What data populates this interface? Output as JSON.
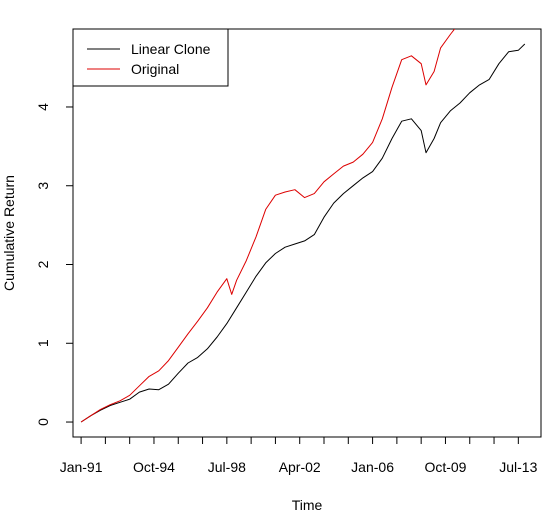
{
  "chart_data": {
    "type": "line",
    "title": "",
    "xlabel": "Time",
    "ylabel": "Cumulative Return",
    "x_tick_labels": [
      "Jan-91",
      "Oct-94",
      "Jul-98",
      "Apr-02",
      "Jan-06",
      "Oct-09",
      "Jul-13"
    ],
    "y_tick_labels": [
      "0",
      "1",
      "2",
      "3",
      "4"
    ],
    "y_ticks": [
      0,
      1,
      2,
      3,
      4
    ],
    "ylim": [
      -0.19,
      4.99
    ],
    "xlim": [
      "1990-08",
      "2014-09"
    ],
    "grid": false,
    "legend_position": "top-left",
    "series": [
      {
        "name": "Linear Clone",
        "color": "#000000",
        "points": [
          [
            "1991-01",
            0.0
          ],
          [
            "1991-07",
            0.08
          ],
          [
            "1992-01",
            0.15
          ],
          [
            "1992-07",
            0.21
          ],
          [
            "1993-01",
            0.25
          ],
          [
            "1993-07",
            0.29
          ],
          [
            "1994-01",
            0.38
          ],
          [
            "1994-07",
            0.42
          ],
          [
            "1995-01",
            0.41
          ],
          [
            "1995-07",
            0.48
          ],
          [
            "1996-01",
            0.62
          ],
          [
            "1996-07",
            0.75
          ],
          [
            "1997-01",
            0.82
          ],
          [
            "1997-07",
            0.93
          ],
          [
            "1998-01",
            1.08
          ],
          [
            "1998-07",
            1.25
          ],
          [
            "1999-01",
            1.45
          ],
          [
            "1999-07",
            1.65
          ],
          [
            "2000-01",
            1.85
          ],
          [
            "2000-07",
            2.02
          ],
          [
            "2001-01",
            2.14
          ],
          [
            "2001-07",
            2.22
          ],
          [
            "2002-01",
            2.26
          ],
          [
            "2002-07",
            2.3
          ],
          [
            "2003-01",
            2.38
          ],
          [
            "2003-07",
            2.6
          ],
          [
            "2004-01",
            2.78
          ],
          [
            "2004-07",
            2.9
          ],
          [
            "2005-01",
            3.0
          ],
          [
            "2005-07",
            3.1
          ],
          [
            "2006-01",
            3.18
          ],
          [
            "2006-07",
            3.35
          ],
          [
            "2007-01",
            3.6
          ],
          [
            "2007-07",
            3.82
          ],
          [
            "2008-01",
            3.85
          ],
          [
            "2008-07",
            3.7
          ],
          [
            "2008-10",
            3.42
          ],
          [
            "2009-03",
            3.6
          ],
          [
            "2009-07",
            3.8
          ],
          [
            "2010-01",
            3.95
          ],
          [
            "2010-07",
            4.05
          ],
          [
            "2011-01",
            4.18
          ],
          [
            "2011-07",
            4.28
          ],
          [
            "2012-01",
            4.35
          ],
          [
            "2012-07",
            4.55
          ],
          [
            "2013-01",
            4.7
          ],
          [
            "2013-07",
            4.72
          ],
          [
            "2013-11",
            4.8
          ]
        ]
      },
      {
        "name": "Original",
        "color": "#dd0000",
        "points": [
          [
            "1991-01",
            0.0
          ],
          [
            "1991-07",
            0.08
          ],
          [
            "1992-01",
            0.16
          ],
          [
            "1992-07",
            0.22
          ],
          [
            "1993-01",
            0.27
          ],
          [
            "1993-07",
            0.34
          ],
          [
            "1994-01",
            0.46
          ],
          [
            "1994-07",
            0.58
          ],
          [
            "1995-01",
            0.65
          ],
          [
            "1995-07",
            0.78
          ],
          [
            "1996-01",
            0.95
          ],
          [
            "1996-07",
            1.12
          ],
          [
            "1997-01",
            1.28
          ],
          [
            "1997-07",
            1.45
          ],
          [
            "1998-01",
            1.65
          ],
          [
            "1998-07",
            1.82
          ],
          [
            "1998-10",
            1.62
          ],
          [
            "1999-01",
            1.8
          ],
          [
            "1999-07",
            2.05
          ],
          [
            "2000-01",
            2.35
          ],
          [
            "2000-07",
            2.7
          ],
          [
            "2001-01",
            2.88
          ],
          [
            "2001-07",
            2.92
          ],
          [
            "2002-01",
            2.95
          ],
          [
            "2002-07",
            2.85
          ],
          [
            "2003-01",
            2.9
          ],
          [
            "2003-07",
            3.05
          ],
          [
            "2004-01",
            3.15
          ],
          [
            "2004-07",
            3.25
          ],
          [
            "2005-01",
            3.3
          ],
          [
            "2005-07",
            3.4
          ],
          [
            "2006-01",
            3.55
          ],
          [
            "2006-07",
            3.85
          ],
          [
            "2007-01",
            4.25
          ],
          [
            "2007-07",
            4.6
          ],
          [
            "2008-01",
            4.65
          ],
          [
            "2008-07",
            4.55
          ],
          [
            "2008-10",
            4.28
          ],
          [
            "2009-03",
            4.45
          ],
          [
            "2009-07",
            4.75
          ],
          [
            "2010-01",
            4.92
          ],
          [
            "2010-04",
            5.0
          ]
        ]
      }
    ]
  }
}
